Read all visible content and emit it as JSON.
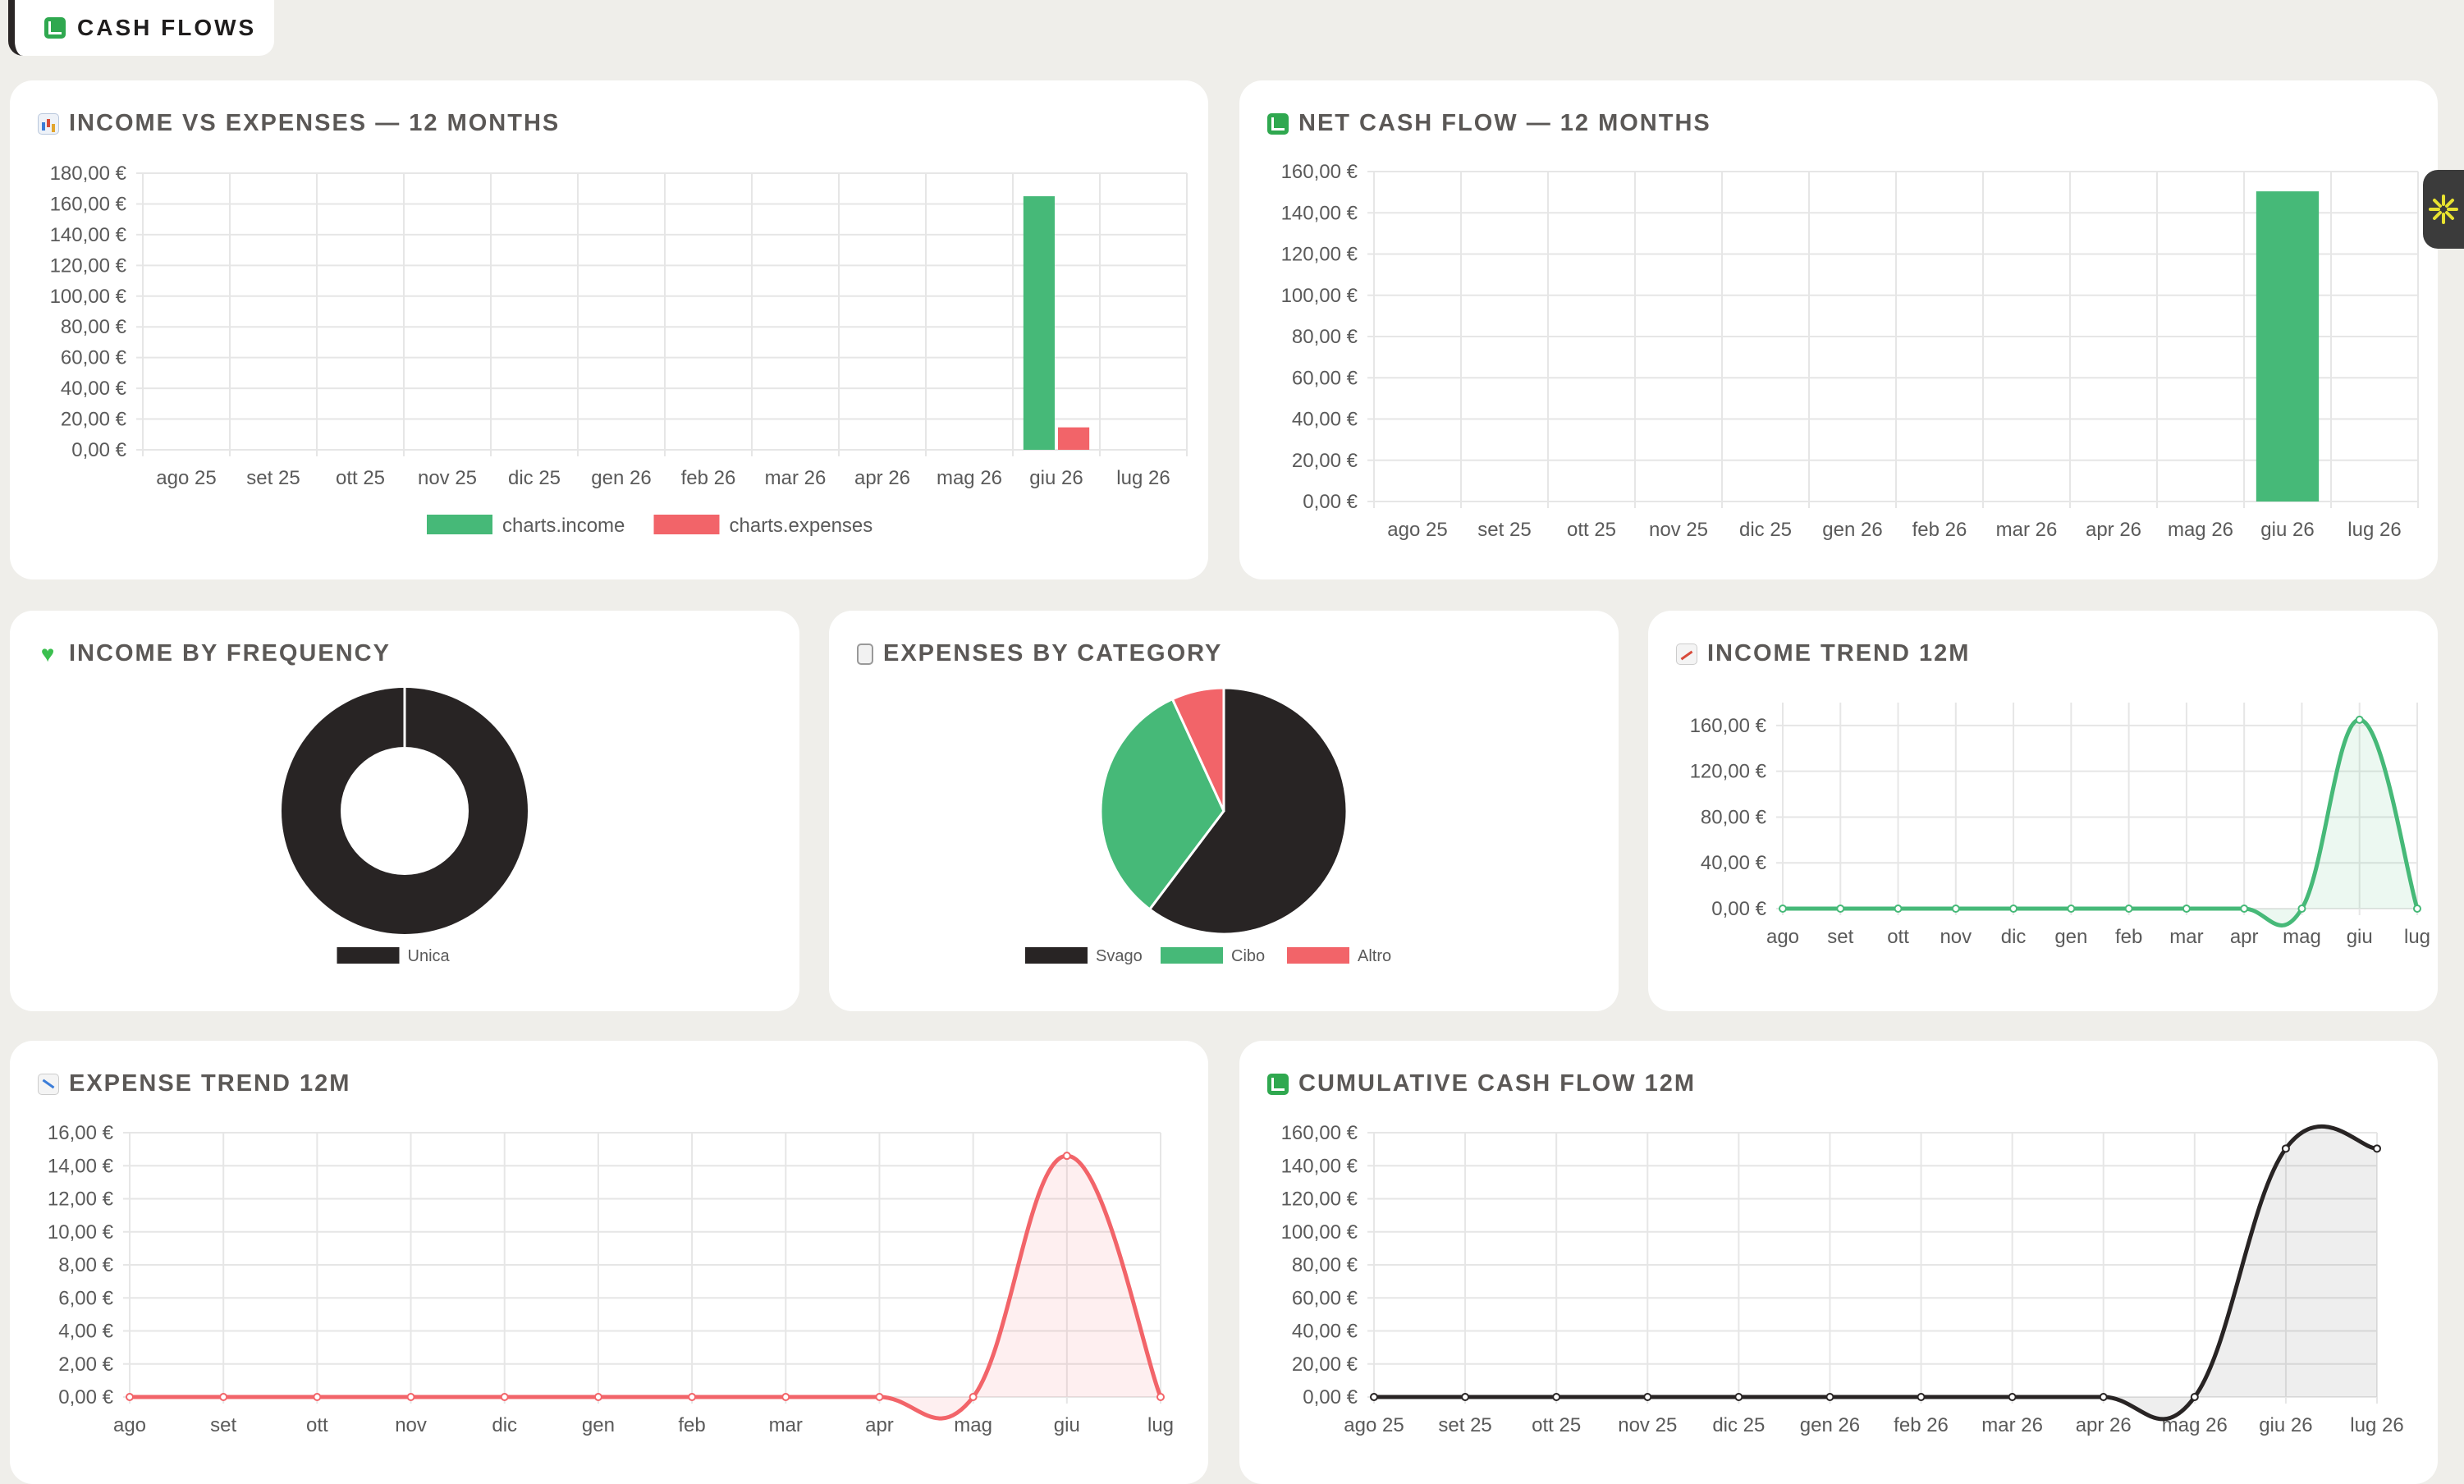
{
  "page": {
    "tab_title": "CASH FLOWS",
    "side_widget_icon": "sparkle-icon"
  },
  "colors": {
    "income": "#46b978",
    "expense": "#f26469",
    "dark": "#282424",
    "grid": "#e6e6e6",
    "tick": "#5a5a5a"
  },
  "cards": {
    "income_vs_expenses": {
      "title": "INCOME VS EXPENSES — 12 MONTHS",
      "icon": "bar-chart-icon"
    },
    "net_cash_flow": {
      "title": "NET CASH FLOW — 12 MONTHS",
      "icon": "chart-up-icon"
    },
    "income_by_frequency": {
      "title": "INCOME BY FREQUENCY",
      "icon": "green-heart-icon"
    },
    "expenses_by_category": {
      "title": "EXPENSES BY CATEGORY",
      "icon": "receipt-icon"
    },
    "income_trend": {
      "title": "INCOME TREND 12M",
      "icon": "trend-up-icon"
    },
    "expense_trend": {
      "title": "EXPENSE TREND 12M",
      "icon": "trend-down-icon"
    },
    "cumulative": {
      "title": "CUMULATIVE CASH FLOW 12M",
      "icon": "chart-up-icon"
    }
  },
  "chart_data": [
    {
      "id": "income_vs_expenses",
      "type": "bar",
      "categories": [
        "ago 25",
        "set 25",
        "ott 25",
        "nov 25",
        "dic 25",
        "gen 26",
        "feb 26",
        "mar 26",
        "apr 26",
        "mag 26",
        "giu 26",
        "lug 26"
      ],
      "series": [
        {
          "name": "charts.income",
          "values": [
            0,
            0,
            0,
            0,
            0,
            0,
            0,
            0,
            0,
            0,
            165,
            0
          ]
        },
        {
          "name": "charts.expenses",
          "values": [
            0,
            0,
            0,
            0,
            0,
            0,
            0,
            0,
            0,
            0,
            14.6,
            0
          ]
        }
      ],
      "y_ticks": [
        "0,00 €",
        "20,00 €",
        "40,00 €",
        "60,00 €",
        "80,00 €",
        "100,00 €",
        "120,00 €",
        "140,00 €",
        "160,00 €",
        "180,00 €"
      ],
      "ylim": [
        0,
        180
      ],
      "legend": "bottom"
    },
    {
      "id": "net_cash_flow",
      "type": "bar",
      "categories": [
        "ago 25",
        "set 25",
        "ott 25",
        "nov 25",
        "dic 25",
        "gen 26",
        "feb 26",
        "mar 26",
        "apr 26",
        "mag 26",
        "giu 26",
        "lug 26"
      ],
      "series": [
        {
          "values": [
            0,
            0,
            0,
            0,
            0,
            0,
            0,
            0,
            0,
            0,
            150.4,
            0
          ]
        }
      ],
      "y_ticks": [
        "0,00 €",
        "20,00 €",
        "40,00 €",
        "60,00 €",
        "80,00 €",
        "100,00 €",
        "120,00 €",
        "140,00 €",
        "160,00 €"
      ],
      "ylim": [
        0,
        160
      ]
    },
    {
      "id": "income_by_frequency",
      "type": "pie",
      "donut": true,
      "labels": [
        "Unica"
      ],
      "values": [
        165
      ],
      "legend": "bottom"
    },
    {
      "id": "expenses_by_category",
      "type": "pie",
      "labels": [
        "Svago",
        "Cibo",
        "Altro"
      ],
      "values": [
        8.8,
        4.8,
        1.0
      ],
      "legend": "bottom"
    },
    {
      "id": "income_trend",
      "type": "area",
      "categories": [
        "ago",
        "set",
        "ott",
        "nov",
        "dic",
        "gen",
        "feb",
        "mar",
        "apr",
        "mag",
        "giu",
        "lug"
      ],
      "series": [
        {
          "values": [
            0,
            0,
            0,
            0,
            0,
            0,
            0,
            0,
            0,
            0,
            165,
            0
          ]
        }
      ],
      "y_ticks": [
        "0,00 €",
        "40,00 €",
        "80,00 €",
        "120,00 €",
        "160,00 €"
      ],
      "ylim": [
        0,
        180
      ]
    },
    {
      "id": "expense_trend",
      "type": "area",
      "categories": [
        "ago",
        "set",
        "ott",
        "nov",
        "dic",
        "gen",
        "feb",
        "mar",
        "apr",
        "mag",
        "giu",
        "lug"
      ],
      "series": [
        {
          "values": [
            0,
            0,
            0,
            0,
            0,
            0,
            0,
            0,
            0,
            0,
            14.6,
            0
          ]
        }
      ],
      "y_ticks": [
        "0,00 €",
        "2,00 €",
        "4,00 €",
        "6,00 €",
        "8,00 €",
        "10,00 €",
        "12,00 €",
        "14,00 €",
        "16,00 €"
      ],
      "ylim": [
        0,
        16
      ]
    },
    {
      "id": "cumulative",
      "type": "area",
      "categories": [
        "ago 25",
        "set 25",
        "ott 25",
        "nov 25",
        "dic 25",
        "gen 26",
        "feb 26",
        "mar 26",
        "apr 26",
        "mag 26",
        "giu 26",
        "lug 26"
      ],
      "series": [
        {
          "values": [
            0,
            0,
            0,
            0,
            0,
            0,
            0,
            0,
            0,
            0,
            150.4,
            150.4
          ]
        }
      ],
      "y_ticks": [
        "0,00 €",
        "20,00 €",
        "40,00 €",
        "60,00 €",
        "80,00 €",
        "100,00 €",
        "120,00 €",
        "140,00 €",
        "160,00 €"
      ],
      "ylim": [
        0,
        160
      ]
    }
  ]
}
